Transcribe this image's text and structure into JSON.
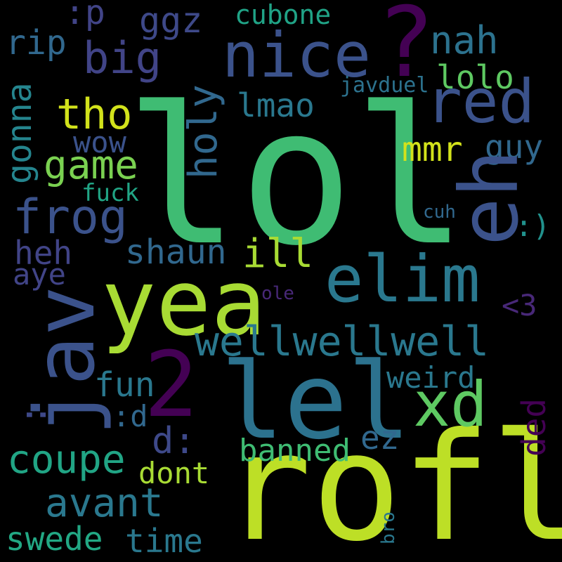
{
  "words": [
    {
      "text": "lol",
      "color": "#3fbc73"
    },
    {
      "text": "rofl",
      "color": "#bddf26"
    },
    {
      "text": "lel",
      "color": "#2c728e"
    },
    {
      "text": "yea",
      "color": "#a8db34"
    },
    {
      "text": "elim",
      "color": "#2a788e"
    },
    {
      "text": "nice",
      "color": "#3b528b"
    },
    {
      "text": "?",
      "color": "#440154"
    },
    {
      "text": "2",
      "color": "#440154"
    },
    {
      "text": "jav",
      "color": "#3b528b"
    },
    {
      "text": "eh",
      "color": "#3b528b"
    },
    {
      "text": "red",
      "color": "#3b528b"
    },
    {
      "text": "xd",
      "color": "#5ec962"
    },
    {
      "text": "wellwellwell",
      "color": "#2a788e"
    },
    {
      "text": "frog",
      "color": "#3b528b"
    },
    {
      "text": "big",
      "color": "#414487"
    },
    {
      "text": "game",
      "color": "#7ad151"
    },
    {
      "text": "tho",
      "color": "#d2e21b"
    },
    {
      "text": "coupe",
      "color": "#21a585"
    },
    {
      "text": "avant",
      "color": "#2a788e"
    },
    {
      "text": "swede",
      "color": "#22a884"
    },
    {
      "text": "time",
      "color": "#2a788e"
    },
    {
      "text": "mmr",
      "color": "#d2e21b"
    },
    {
      "text": "nah",
      "color": "#2c728e"
    },
    {
      "text": "ggz",
      "color": "#3e4989"
    },
    {
      "text": "lmao",
      "color": "#2a788e"
    },
    {
      "text": "holy",
      "color": "#31688e"
    },
    {
      "text": "gonna",
      "color": "#25858e"
    },
    {
      "text": "rip",
      "color": "#31688e"
    },
    {
      "text": "heh",
      "color": "#414487"
    },
    {
      "text": "aye",
      "color": "#414487"
    },
    {
      "text": "shaun",
      "color": "#31688e"
    },
    {
      "text": "ill",
      "color": "#a8db34"
    },
    {
      "text": "fun",
      "color": "#2a788e"
    },
    {
      "text": "d:",
      "color": "#3e4989"
    },
    {
      "text": ":d",
      "color": "#31688e"
    },
    {
      "text": "banned",
      "color": "#3fbc73"
    },
    {
      "text": "dont",
      "color": "#a8db34"
    },
    {
      "text": "weird",
      "color": "#2a788e"
    },
    {
      "text": "ez",
      "color": "#31688e"
    },
    {
      "text": "ded",
      "color": "#440154"
    },
    {
      "text": "<3",
      "color": "#482878"
    },
    {
      "text": ":)",
      "color": "#21918c"
    },
    {
      "text": "cuh",
      "color": "#31688e"
    },
    {
      "text": "ole",
      "color": "#482878"
    },
    {
      "text": "guy",
      "color": "#31688e"
    },
    {
      "text": "wow",
      "color": "#3b528b"
    },
    {
      "text": "fuck",
      "color": "#21a585"
    },
    {
      "text": "lolo",
      "color": "#5ec962"
    },
    {
      "text": "javduel",
      "color": "#2c728e"
    },
    {
      "text": "cubone",
      "color": "#20a386"
    },
    {
      "text": ":p",
      "color": "#414487"
    },
    {
      "text": "bro",
      "color": "#2a788e"
    },
    {
      "text": ":",
      "color": "#3e4989"
    }
  ]
}
